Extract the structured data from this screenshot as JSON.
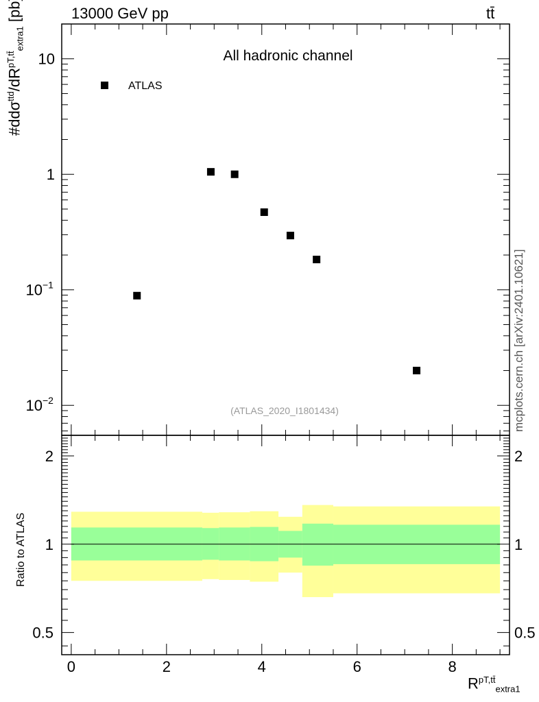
{
  "header": {
    "energy_label": "13000 GeV pp",
    "process_label": "tt̄"
  },
  "watermark": "mcplots.cern.ch [arXiv:2401.10621]",
  "chart_data": [
    {
      "type": "scatter",
      "panel": "main",
      "title": "All hadronic channel",
      "ylabel_prefix": "#d",
      "ylabel_frac_num": "dσ",
      "ylabel_frac_num_sup": "ttd",
      "ylabel_frac_den": "dR",
      "ylabel_frac_den_sup": "pT,tt̄",
      "ylabel_frac_den_sub": "extra1",
      "ylabel_unit": "[pb]",
      "yscale": "log",
      "ylim": [
        0.0055,
        20
      ],
      "xlim": [
        -0.2,
        9.2
      ],
      "yticks": [
        {
          "value": 0.01,
          "label": "10",
          "exp": "−2"
        },
        {
          "value": 0.1,
          "label": "10",
          "exp": "−1"
        },
        {
          "value": 1,
          "label": "1",
          "exp": ""
        },
        {
          "value": 10,
          "label": "10",
          "exp": ""
        }
      ],
      "series": [
        {
          "name": "ATLAS",
          "color": "#000000",
          "marker": "square",
          "points": [
            {
              "x": 1.38,
              "y": 0.089
            },
            {
              "x": 2.93,
              "y": 1.05
            },
            {
              "x": 3.43,
              "y": 1.0
            },
            {
              "x": 4.05,
              "y": 0.47
            },
            {
              "x": 4.6,
              "y": 0.295
            },
            {
              "x": 5.15,
              "y": 0.183
            },
            {
              "x": 7.25,
              "y": 0.02
            }
          ]
        }
      ],
      "annotation": "(ATLAS_2020_I1801434)",
      "legend_position": "top-left",
      "grid": false
    },
    {
      "type": "area",
      "panel": "ratio",
      "ylabel": "Ratio to ATLAS",
      "xlabel": "R",
      "xlabel_sup": "pT,tt̄",
      "xlabel_sub": "extra1",
      "yscale": "log",
      "ylim": [
        0.42,
        2.35
      ],
      "xlim": [
        -0.2,
        9.2
      ],
      "xticks": [
        0,
        2,
        4,
        6,
        8
      ],
      "yticks": [
        0.5,
        1,
        2
      ],
      "reference_line": 1,
      "colors": {
        "inner": "#99ff99",
        "outer": "#ffff99",
        "line": "#000000"
      },
      "bands": [
        {
          "x0": 0.0,
          "x1": 2.75,
          "outer_lo": 0.75,
          "outer_hi": 1.29,
          "inner_lo": 0.88,
          "inner_hi": 1.14
        },
        {
          "x0": 2.75,
          "x1": 3.1,
          "outer_lo": 0.76,
          "outer_hi": 1.28,
          "inner_lo": 0.885,
          "inner_hi": 1.135
        },
        {
          "x0": 3.1,
          "x1": 3.75,
          "outer_lo": 0.755,
          "outer_hi": 1.285,
          "inner_lo": 0.88,
          "inner_hi": 1.14
        },
        {
          "x0": 3.75,
          "x1": 4.35,
          "outer_lo": 0.745,
          "outer_hi": 1.295,
          "inner_lo": 0.875,
          "inner_hi": 1.145
        },
        {
          "x0": 4.35,
          "x1": 4.85,
          "outer_lo": 0.8,
          "outer_hi": 1.24,
          "inner_lo": 0.9,
          "inner_hi": 1.11
        },
        {
          "x0": 4.85,
          "x1": 5.5,
          "outer_lo": 0.66,
          "outer_hi": 1.36,
          "inner_lo": 0.845,
          "inner_hi": 1.175
        },
        {
          "x0": 5.5,
          "x1": 9.0,
          "outer_lo": 0.68,
          "outer_hi": 1.345,
          "inner_lo": 0.855,
          "inner_hi": 1.165
        }
      ]
    }
  ]
}
